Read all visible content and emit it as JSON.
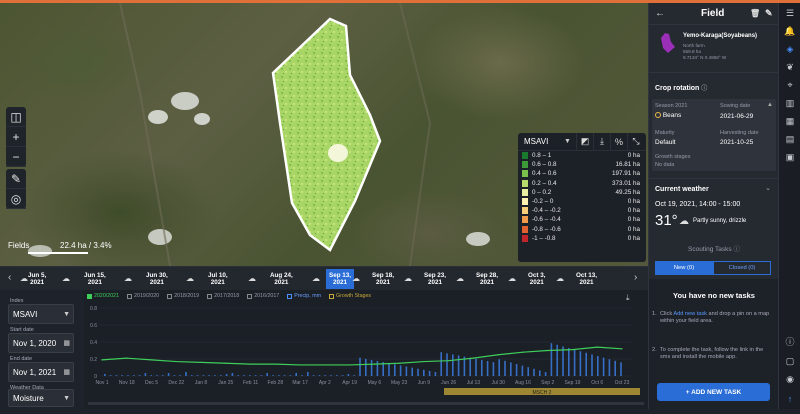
{
  "map": {
    "area_label": "22.4 ha / 3.4%",
    "scale_label": "Fields",
    "legend": {
      "index": "MSAVI",
      "rows": [
        {
          "range": "0.8 – 1",
          "area": "0 ha",
          "color": "#1a7a2e"
        },
        {
          "range": "0.6 – 0.8",
          "area": "16.81 ha",
          "color": "#3d9b3a"
        },
        {
          "range": "0.4 – 0.6",
          "area": "197.91 ha",
          "color": "#78bf4c"
        },
        {
          "range": "0.2 – 0.4",
          "area": "373.01 ha",
          "color": "#b6dc6c"
        },
        {
          "range": "0 – 0.2",
          "area": "49.25 ha",
          "color": "#e9efa0"
        },
        {
          "range": "-0.2 – 0",
          "area": "0 ha",
          "color": "#fdf2b0"
        },
        {
          "range": "-0.4 – -0.2",
          "area": "0 ha",
          "color": "#f7cf78"
        },
        {
          "range": "-0.6 – -0.4",
          "area": "0 ha",
          "color": "#f09a4a"
        },
        {
          "range": "-0.8 – -0.6",
          "area": "0 ha",
          "color": "#e26131"
        },
        {
          "range": "-1 – -0.8",
          "area": "0 ha",
          "color": "#c2242c"
        }
      ]
    }
  },
  "timeline": {
    "items": [
      {
        "l1": "Jun 5,",
        "l2": "2021"
      },
      {
        "l1": "Jun 15,",
        "l2": "2021"
      },
      {
        "l1": "Jun 30,",
        "l2": "2021"
      },
      {
        "l1": "Jul 10,",
        "l2": "2021"
      },
      {
        "l1": "Aug 24,",
        "l2": "2021"
      },
      {
        "l1": "Sep 13,",
        "l2": "2021"
      },
      {
        "l1": "Sep 18,",
        "l2": "2021"
      },
      {
        "l1": "Sep 23,",
        "l2": "2021"
      },
      {
        "l1": "Sep 28,",
        "l2": "2021"
      },
      {
        "l1": "Oct 3,",
        "l2": "2021"
      },
      {
        "l1": "Oct 13,",
        "l2": "2021"
      }
    ]
  },
  "controls": {
    "index_label": "Index",
    "index_value": "MSAVI",
    "start_label": "Start date",
    "start_value": "Nov 1, 2020",
    "end_label": "End date",
    "end_value": "Nov 1, 2021",
    "weather_label": "Weather Data",
    "weather_value": "Moisture"
  },
  "chart_data": {
    "type": "line",
    "legend": [
      "2020/2021",
      "2019/2020",
      "2018/2019",
      "2017/2018",
      "2016/2017",
      "Precip, mm",
      "Growth Stages"
    ],
    "x_ticks": [
      "Nov 1",
      "Nov 18",
      "Dec 5",
      "Dec 22",
      "Jan 8",
      "Jan 25",
      "Feb 11",
      "Feb 28",
      "Mar 17",
      "Apr 2",
      "Apr 19",
      "May 6",
      "May 23",
      "Jun 9",
      "Jun 26",
      "Jul 13",
      "Jul 30",
      "Aug 16",
      "Sep 2",
      "Sep 19",
      "Oct 6",
      "Oct 23"
    ],
    "y_ticks": [
      "0.8",
      "0.6",
      "0.4",
      "0.2",
      "0"
    ],
    "ylim": [
      0,
      0.8
    ],
    "series": [
      {
        "name": "2020/2021",
        "values": [
          0.19,
          0.21,
          0.19,
          0.17,
          0.16,
          0.15,
          0.14,
          0.14,
          0.13,
          0.13,
          0.13,
          0.14,
          0.15,
          0.17,
          0.18,
          0.21,
          0.25,
          0.28,
          0.3,
          0.31,
          0.34,
          0.32
        ]
      }
    ],
    "growth_stage_band": "MSCH 2"
  },
  "panel": {
    "title": "Field",
    "field_name": "Yemo-Karaga(Soyabeans)",
    "field_farm": "North farm",
    "field_area": "559.8 ha",
    "field_coords": "9.7134° N 0.4958° W",
    "crop_rotation_title": "Crop rotation",
    "season_label": "Season 2021",
    "crop": "Beans",
    "sowing_label": "Sowing date",
    "sowing_value": "2021-06-29",
    "maturity_label": "Maturity",
    "maturity_value": "Default",
    "harvest_label": "Harvesting date",
    "harvest_value": "2021-10-25",
    "growth_label": "Growth stages",
    "growth_value": "No data",
    "weather_title": "Current weather",
    "weather_date": "Oct 19, 2021, 14:00 - 15:00",
    "weather_temp": "31°",
    "weather_desc": "Partly sunny, drizzle",
    "scouting_title": "Scouting Tasks",
    "tab_new": "New (0)",
    "tab_closed": "Closed (0)",
    "no_tasks": "You have no new tasks",
    "step1_pre": "Click ",
    "step1_link": "Add new task",
    "step1_post": " and drop a pin on a map within your field area.",
    "step2": "To complete the task, follow the link in the sms and install the mobile app.",
    "add_button": "+ ADD NEW TASK"
  }
}
